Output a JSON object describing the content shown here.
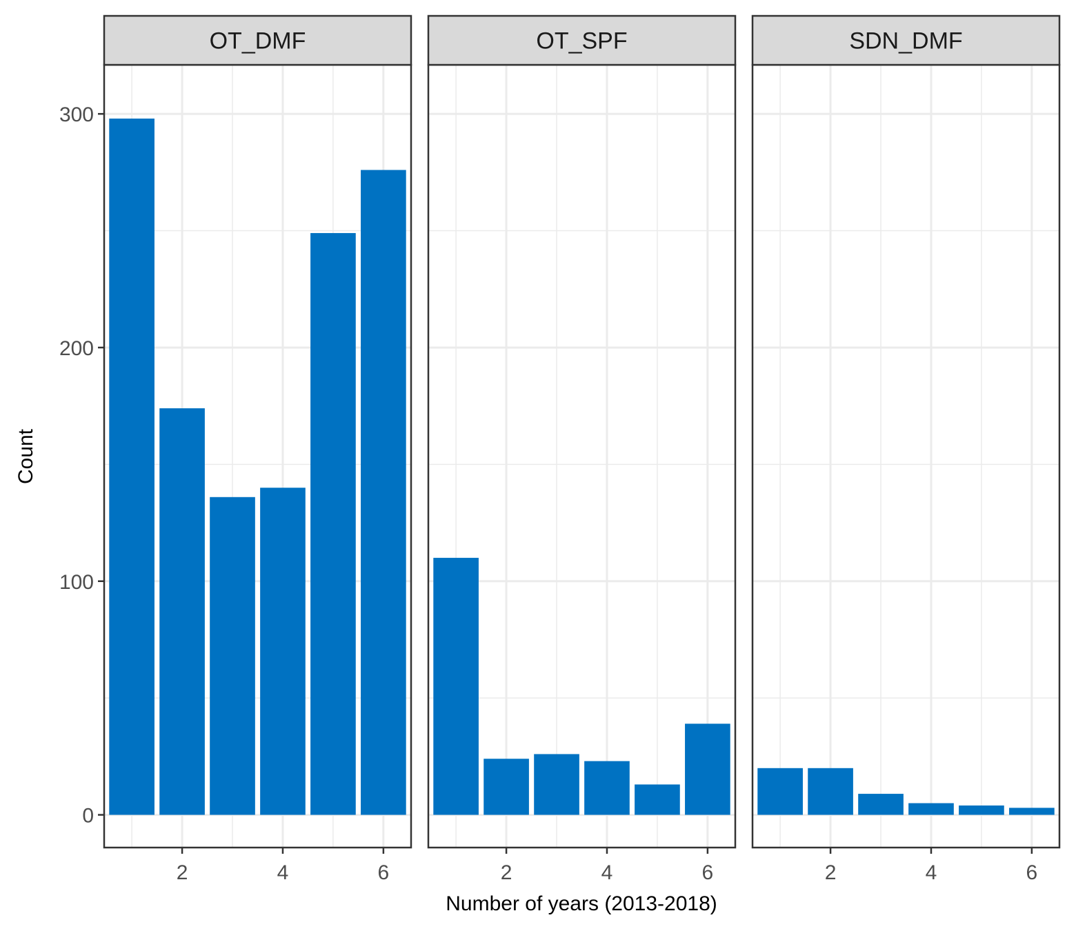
{
  "chart_data": {
    "type": "bar",
    "facet": true,
    "xlabel": "Number of years (2013-2018)",
    "ylabel": "Count",
    "x_categories": [
      1,
      2,
      3,
      4,
      5,
      6
    ],
    "x_ticks": [
      2,
      4,
      6
    ],
    "y_ticks": [
      0,
      100,
      200,
      300
    ],
    "ylim": [
      -14,
      321
    ],
    "xlim": [
      0.45,
      6.55
    ],
    "bar_color": "#0072C2",
    "panel_strip_color": "#D9D9D9",
    "grid_color": "#EBEBEB",
    "border_color": "#333333",
    "grid": true,
    "panels": [
      {
        "name": "OT_DMF",
        "values": [
          298,
          174,
          136,
          140,
          249,
          276
        ]
      },
      {
        "name": "OT_SPF",
        "values": [
          110,
          24,
          26,
          23,
          13,
          39
        ]
      },
      {
        "name": "SDN_DMF",
        "values": [
          20,
          20,
          9,
          5,
          4,
          3
        ]
      }
    ]
  }
}
